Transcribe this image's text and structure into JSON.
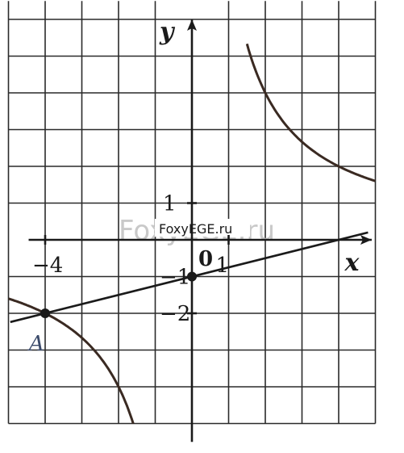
{
  "chart_data": {
    "type": "line",
    "title": "",
    "xlabel": "x",
    "ylabel": "y",
    "xlim": [
      -5,
      5
    ],
    "ylim": [
      -5.5,
      6
    ],
    "grid": true,
    "tick_labels": {
      "x": [
        {
          "value": -4,
          "label": "−4"
        },
        {
          "value": 1,
          "label": "1"
        }
      ],
      "y": [
        {
          "value": 1,
          "label": "1"
        },
        {
          "value": -1,
          "label": "−1"
        },
        {
          "value": -2,
          "label": "−2"
        }
      ],
      "origin": "0"
    },
    "series": [
      {
        "kind": "line",
        "points": [
          [
            -4,
            -2
          ],
          [
            0,
            -1
          ]
        ]
      },
      {
        "kind": "hyperbola",
        "k": 8,
        "a": 0,
        "b": 0,
        "branches": [
          [
            -5,
            -1.6
          ],
          [
            1.5,
            5
          ]
        ]
      }
    ],
    "points": [
      {
        "label": "A",
        "x": -4,
        "y": -2
      },
      {
        "label": "",
        "x": 0,
        "y": -1
      }
    ]
  },
  "watermark": {
    "faint": "FoxyEGE.ru",
    "text": "FoxyEGE.ru"
  }
}
